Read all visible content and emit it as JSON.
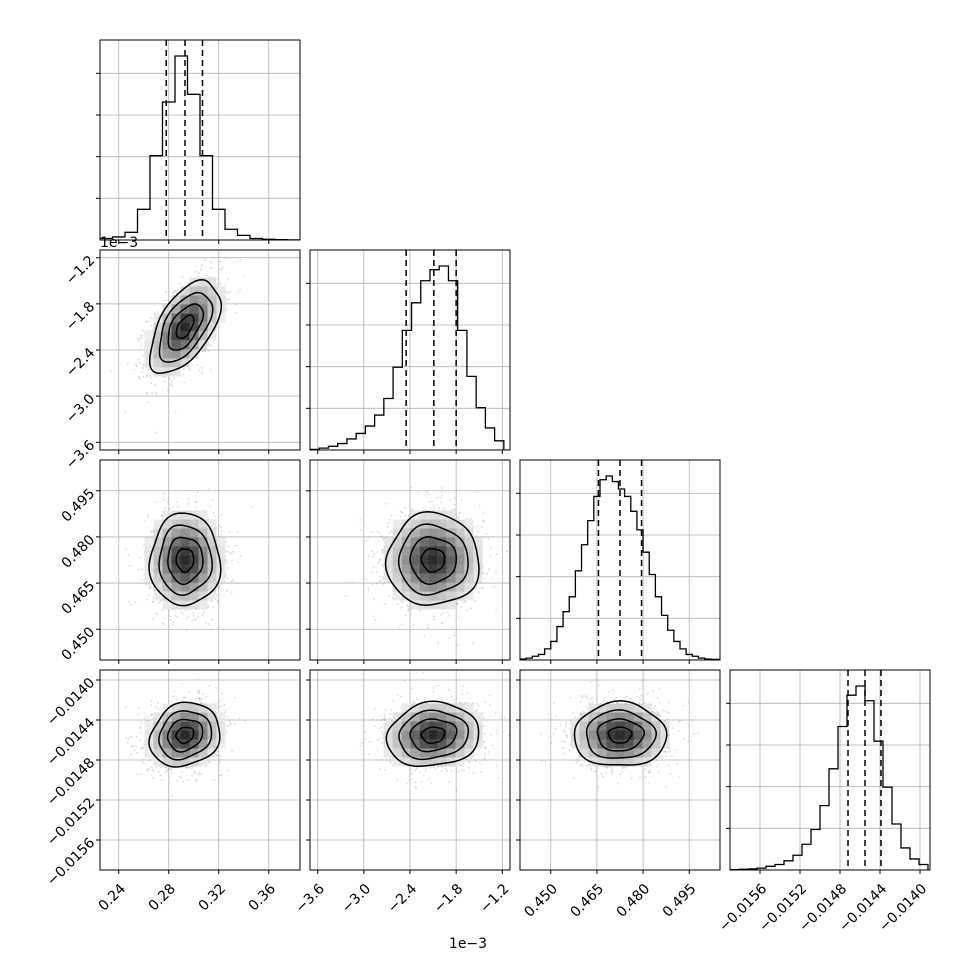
{
  "chart_data": {
    "type": "corner",
    "parameters": [
      {
        "range": [
          0.225,
          0.385
        ],
        "ticks": [
          0.24,
          0.28,
          0.32,
          0.36
        ],
        "tick_labels": [
          "0.24",
          "0.28",
          "0.32",
          "0.36"
        ],
        "quantiles": [
          0.278,
          0.293,
          0.307
        ],
        "hist_bins": [
          0.225,
          0.235,
          0.245,
          0.255,
          0.265,
          0.275,
          0.285,
          0.295,
          0.305,
          0.315,
          0.325,
          0.335,
          0.345,
          0.355,
          0.365,
          0.375,
          0.385
        ],
        "hist_counts": [
          1,
          2,
          5,
          20,
          55,
          90,
          120,
          95,
          55,
          20,
          7,
          3,
          1,
          0.5,
          0.2,
          0.1
        ],
        "mean": 0.293,
        "sd": 0.014
      },
      {
        "offset_label": "1e−3",
        "range": [
          -3.7,
          -1.1
        ],
        "ticks": [
          -3.6,
          -3.0,
          -2.4,
          -1.8,
          -1.2
        ],
        "tick_labels": [
          "−3.6",
          "−3.0",
          "−2.4",
          "−1.8",
          "−1.2"
        ],
        "quantiles": [
          -2.45,
          -2.09,
          -1.8
        ],
        "hist_bins": [
          -3.7,
          -3.58,
          -3.46,
          -3.34,
          -3.22,
          -3.1,
          -2.98,
          -2.86,
          -2.74,
          -2.62,
          -2.5,
          -2.38,
          -2.26,
          -2.14,
          -2.02,
          -1.9,
          -1.78,
          -1.66,
          -1.54,
          -1.42,
          -1.3,
          -1.18
        ],
        "hist_counts": [
          0.3,
          1,
          2,
          3.5,
          6,
          9,
          13,
          19,
          28,
          45,
          65,
          80,
          92,
          98,
          100,
          92,
          65,
          40,
          23,
          12,
          5
        ],
        "mean": -2.1,
        "sd": 0.3
      },
      {
        "range": [
          0.44,
          0.505
        ],
        "ticks": [
          0.45,
          0.465,
          0.48,
          0.495
        ],
        "tick_labels": [
          "0.450",
          "0.465",
          "0.480",
          "0.495"
        ],
        "quantiles": [
          0.4655,
          0.4725,
          0.4795
        ],
        "hist_bins": [
          0.44,
          0.442,
          0.444,
          0.446,
          0.448,
          0.45,
          0.452,
          0.454,
          0.456,
          0.458,
          0.46,
          0.462,
          0.464,
          0.466,
          0.468,
          0.47,
          0.472,
          0.474,
          0.476,
          0.478,
          0.48,
          0.482,
          0.484,
          0.486,
          0.488,
          0.49,
          0.492,
          0.494,
          0.496,
          0.498,
          0.5,
          0.502,
          0.505
        ],
        "hist_counts": [
          0.5,
          1,
          2,
          3,
          6,
          10,
          18,
          26,
          34,
          48,
          62,
          75,
          88,
          97,
          99,
          96,
          92,
          88,
          80,
          70,
          58,
          46,
          34,
          24,
          16,
          10,
          6,
          3,
          2,
          1,
          0.5,
          0.3
        ],
        "mean": 0.4725,
        "sd": 0.0075
      },
      {
        "range": [
          -0.0159,
          -0.0139
        ],
        "ticks": [
          -0.0156,
          -0.0152,
          -0.0148,
          -0.0144,
          -0.014
        ],
        "tick_labels": [
          "−0.0156",
          "−0.0152",
          "−0.0148",
          "−0.0144",
          "−0.0140"
        ],
        "quantiles": [
          -0.01472,
          -0.01455,
          -0.01439
        ],
        "hist_bins": [
          -0.0159,
          -0.01581,
          -0.01572,
          -0.01563,
          -0.01554,
          -0.01545,
          -0.01536,
          -0.01527,
          -0.01518,
          -0.01509,
          -0.015,
          -0.01491,
          -0.01482,
          -0.01473,
          -0.01464,
          -0.01455,
          -0.01446,
          -0.01437,
          -0.01428,
          -0.01419,
          -0.0141,
          -0.01401,
          -0.01392
        ],
        "hist_counts": [
          0.2,
          0.4,
          0.6,
          1,
          2,
          3,
          5,
          8,
          14,
          22,
          35,
          55,
          78,
          95,
          100,
          92,
          70,
          45,
          25,
          12,
          6,
          3
        ],
        "mean": -0.01455,
        "sd": 0.00016
      }
    ],
    "correlations": [
      [
        1,
        0.55,
        0,
        0.15
      ],
      [
        0.55,
        1,
        0,
        0.1
      ],
      [
        0,
        0,
        1,
        0
      ],
      [
        0.15,
        0.1,
        0,
        1
      ]
    ],
    "x_offset_label": "1e−3",
    "grid": true,
    "colors": {
      "hist": "#000000",
      "points": "#aaaaaa",
      "contour": "#000000",
      "grid": "#b0b0b0"
    }
  }
}
